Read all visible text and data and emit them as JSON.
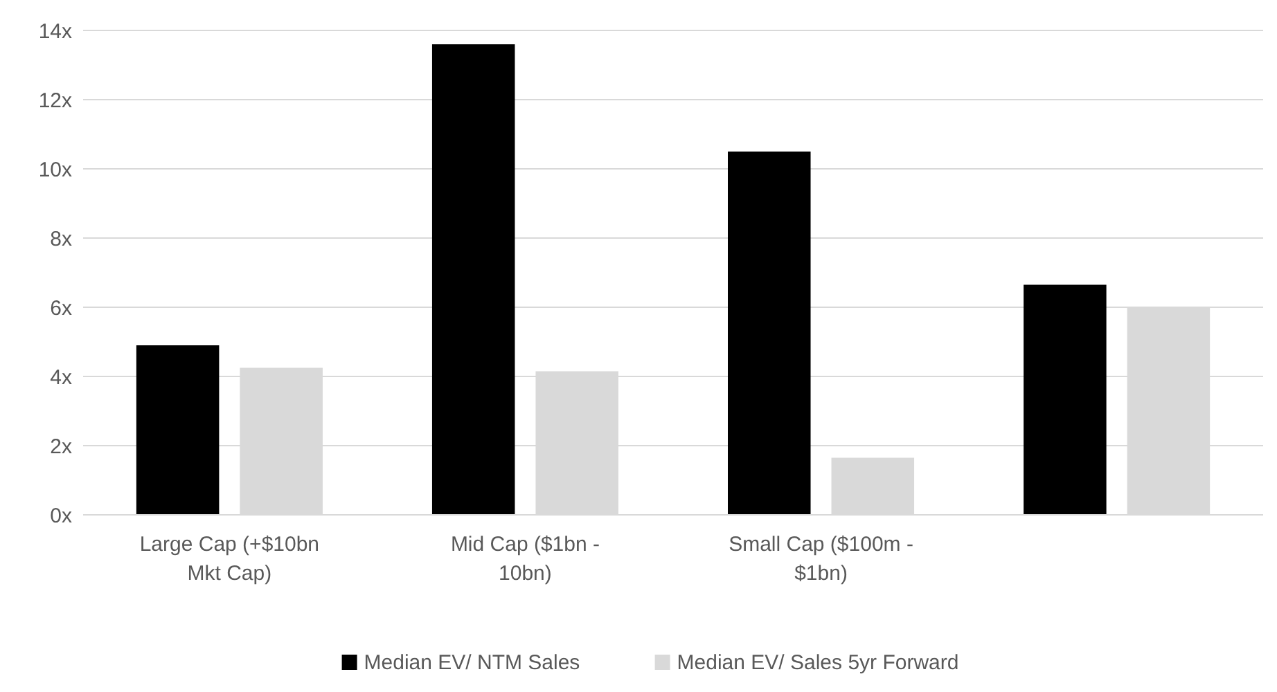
{
  "chart_data": {
    "type": "bar",
    "categories": [
      "Large Cap (+$10bn Mkt Cap)",
      "Mid Cap ($1bn - 10bn)",
      "Small Cap ($100m - $1bn)",
      null
    ],
    "series": [
      {
        "name": "Median EV/ NTM Sales",
        "color": "#000000",
        "values": [
          4.9,
          13.6,
          10.5,
          6.65
        ]
      },
      {
        "name": "Median EV/ Sales 5yr Forward",
        "color": "#d9d9d9",
        "values": [
          4.25,
          4.15,
          1.65,
          6.0
        ]
      }
    ],
    "ylim": [
      0,
      14
    ],
    "yticks": [
      {
        "value": 0,
        "label": "0x"
      },
      {
        "value": 2,
        "label": "2x"
      },
      {
        "value": 4,
        "label": "4x"
      },
      {
        "value": 6,
        "label": "6x"
      },
      {
        "value": 8,
        "label": "8x"
      },
      {
        "value": 10,
        "label": "10x"
      },
      {
        "value": 12,
        "label": "12x"
      },
      {
        "value": 14,
        "label": "14x"
      }
    ],
    "grid": "y",
    "legend": "bottom"
  }
}
